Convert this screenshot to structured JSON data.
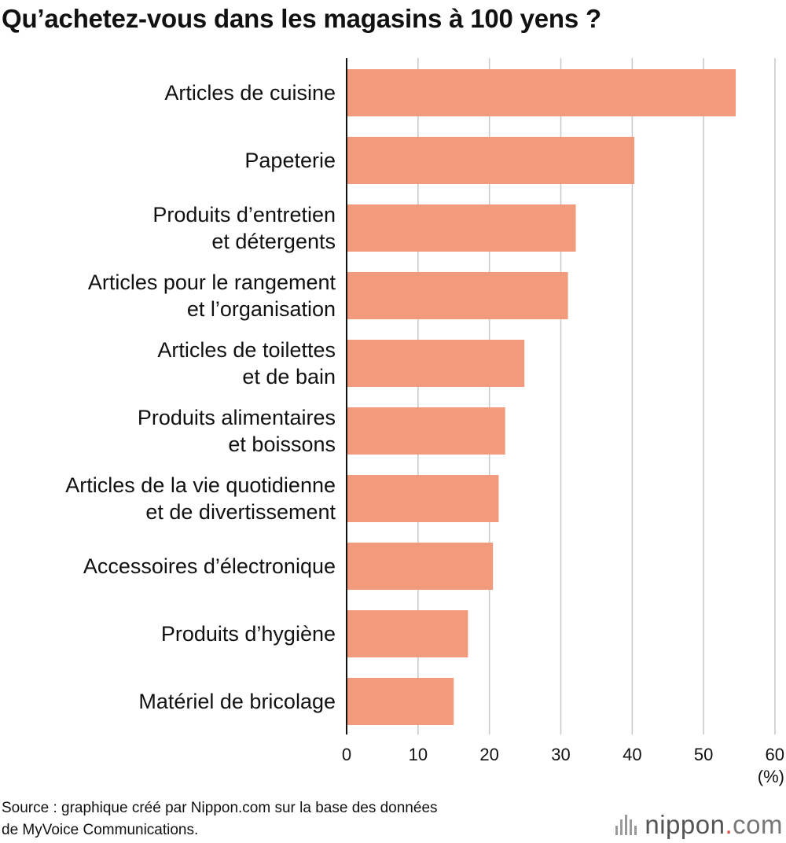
{
  "chart_data": {
    "type": "bar",
    "orientation": "horizontal",
    "title": "Qu’achetez-vous dans les magasins à 100 yens ?",
    "categories": [
      [
        "Articles de cuisine"
      ],
      [
        "Papeterie"
      ],
      [
        "Produits d’entretien",
        "et détergents"
      ],
      [
        "Articles pour le rangement",
        "et l’organisation"
      ],
      [
        "Articles de toilettes",
        "et de bain"
      ],
      [
        "Produits alimentaires",
        "et boissons"
      ],
      [
        "Articles de la vie quotidienne",
        "et de divertissement"
      ],
      [
        "Accessoires d’électronique"
      ],
      [
        "Produits d’hygiène"
      ],
      [
        "Matériel de bricolage"
      ]
    ],
    "values": [
      54.5,
      40.3,
      32.1,
      31.0,
      24.9,
      22.2,
      21.3,
      20.5,
      17.0,
      15.0
    ],
    "xlim": [
      0,
      60
    ],
    "xticks": [
      0,
      10,
      20,
      30,
      40,
      50,
      60
    ],
    "xunit": "(%)",
    "grid": true,
    "bar_color": "#f29b7c"
  },
  "footer": {
    "source_line1": "Source : graphique créé par Nippon.com sur la base des données",
    "source_line2": "de MyVoice Communications."
  },
  "logo": {
    "name": "nippon",
    "dot": ".",
    "tld": "com",
    "accent_color": "#e0473a"
  }
}
